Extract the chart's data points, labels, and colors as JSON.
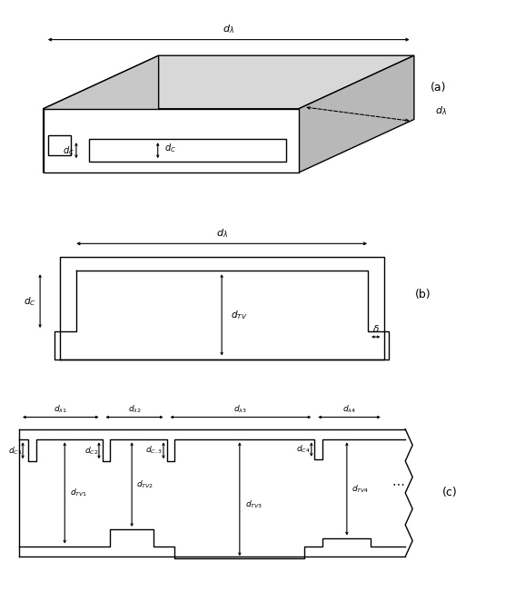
{
  "fig_width": 5.67,
  "fig_height": 6.51,
  "dpi": 100,
  "bg_color": "#ffffff",
  "line_color": "#000000",
  "label_a": "(a)",
  "label_b": "(b)",
  "label_c": "(c)"
}
